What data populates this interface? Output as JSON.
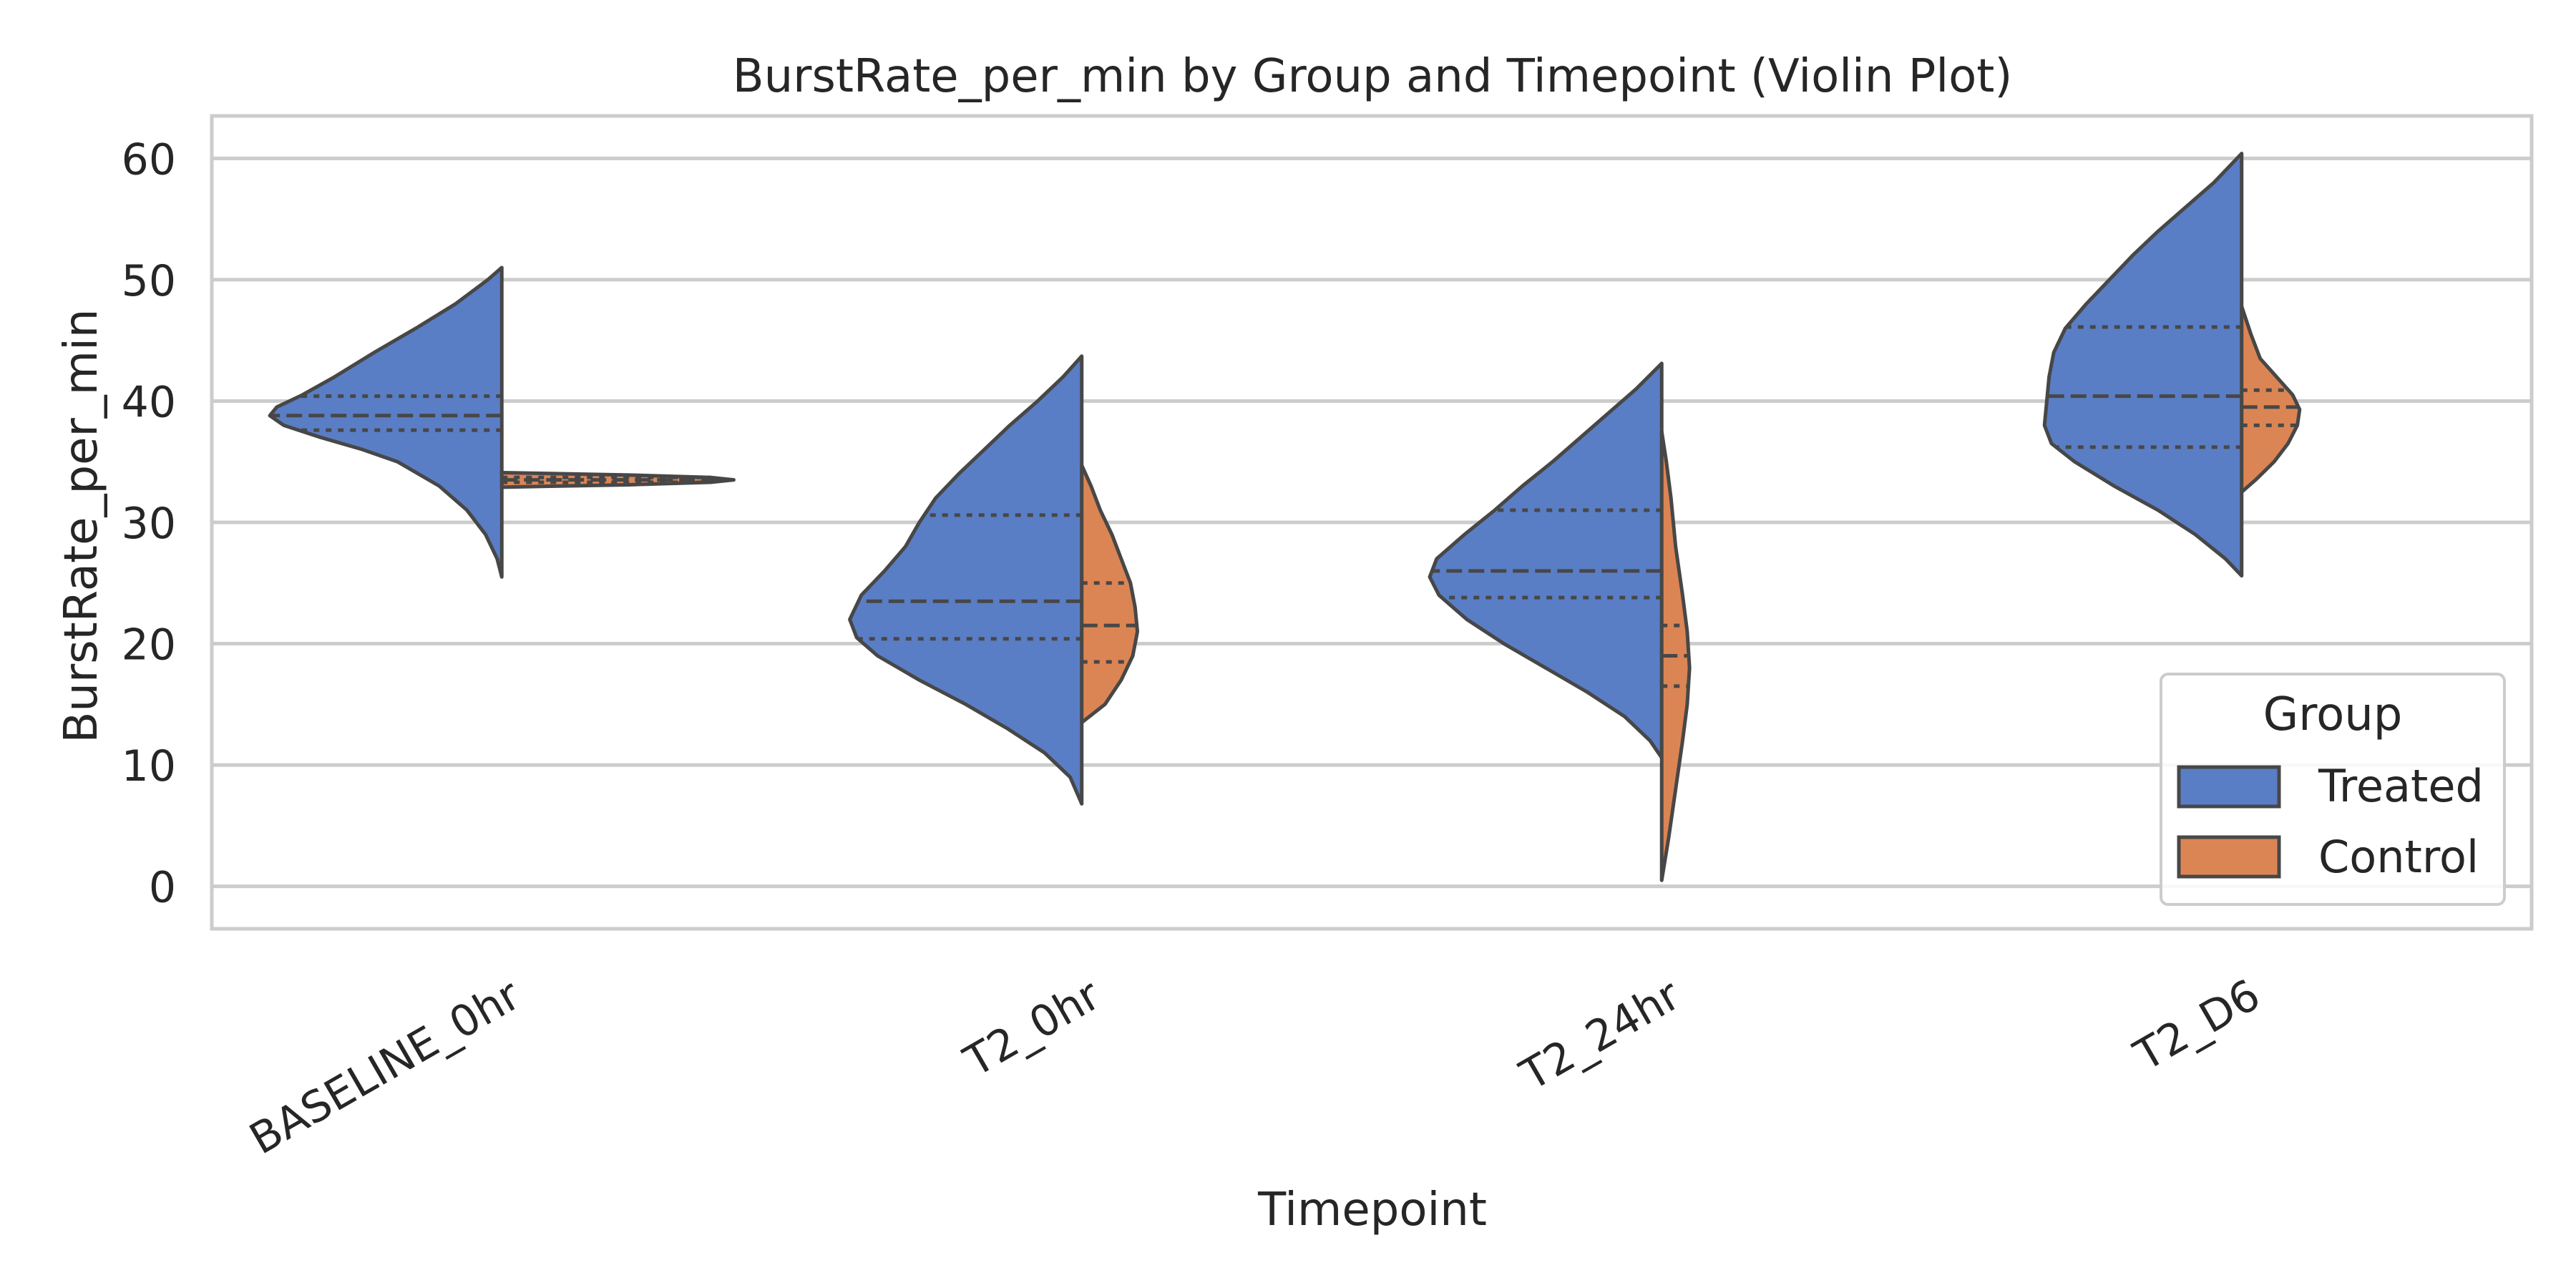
{
  "chart_data": {
    "type": "violin",
    "title": "BurstRate_per_min by Group and Timepoint (Violin Plot)",
    "xlabel": "Timepoint",
    "ylabel": "BurstRate_per_min",
    "ylim": [
      -3.5,
      63.5
    ],
    "yticks": [
      0,
      10,
      20,
      30,
      40,
      50,
      60
    ],
    "grid": true,
    "split": true,
    "inner": "quartile",
    "categories": [
      "BASELINE_0hr",
      "T2_0hr",
      "T2_24hr",
      "T2_D6"
    ],
    "legend": {
      "title": "Group",
      "placement": "lower-right",
      "entries": [
        "Treated",
        "Control"
      ]
    },
    "series": [
      {
        "name": "Treated",
        "color": "#5A7EC5",
        "side": "left",
        "violins": [
          {
            "range": [
              25.5,
              51
            ],
            "quartiles": [
              37.6,
              38.8,
              40.4
            ],
            "profile": [
              [
                25.5,
                0.0
              ],
              [
                27,
                0.02
              ],
              [
                29,
                0.07
              ],
              [
                31,
                0.15
              ],
              [
                33,
                0.27
              ],
              [
                35,
                0.45
              ],
              [
                36,
                0.6
              ],
              [
                37,
                0.78
              ],
              [
                38,
                0.94
              ],
              [
                38.8,
                1.0
              ],
              [
                39.5,
                0.97
              ],
              [
                40.5,
                0.86
              ],
              [
                42,
                0.72
              ],
              [
                44,
                0.55
              ],
              [
                46,
                0.37
              ],
              [
                48,
                0.2
              ],
              [
                50,
                0.06
              ],
              [
                51,
                0.0
              ]
            ]
          },
          {
            "range": [
              6.8,
              43.7
            ],
            "quartiles": [
              20.4,
              23.5,
              30.6
            ],
            "profile": [
              [
                6.8,
                0.0
              ],
              [
                9,
                0.05
              ],
              [
                11,
                0.16
              ],
              [
                13,
                0.32
              ],
              [
                15,
                0.5
              ],
              [
                17,
                0.7
              ],
              [
                19,
                0.88
              ],
              [
                20.5,
                0.97
              ],
              [
                22,
                1.0
              ],
              [
                24,
                0.95
              ],
              [
                26,
                0.85
              ],
              [
                28,
                0.76
              ],
              [
                30,
                0.7
              ],
              [
                32,
                0.63
              ],
              [
                34,
                0.53
              ],
              [
                36,
                0.42
              ],
              [
                38,
                0.31
              ],
              [
                40,
                0.19
              ],
              [
                42,
                0.08
              ],
              [
                43.7,
                0.0
              ]
            ]
          },
          {
            "range": [
              10.6,
              43.1
            ],
            "quartiles": [
              23.8,
              26.0,
              31.0
            ],
            "profile": [
              [
                10.6,
                0.0
              ],
              [
                12,
                0.05
              ],
              [
                14,
                0.16
              ],
              [
                16,
                0.32
              ],
              [
                18,
                0.5
              ],
              [
                20,
                0.68
              ],
              [
                22,
                0.84
              ],
              [
                24,
                0.96
              ],
              [
                25.5,
                1.0
              ],
              [
                27,
                0.97
              ],
              [
                29,
                0.85
              ],
              [
                31,
                0.72
              ],
              [
                33,
                0.6
              ],
              [
                35,
                0.47
              ],
              [
                37,
                0.35
              ],
              [
                39,
                0.23
              ],
              [
                41,
                0.11
              ],
              [
                43.1,
                0.0
              ]
            ]
          },
          {
            "range": [
              25.6,
              60.4
            ],
            "quartiles": [
              36.2,
              40.4,
              46.1
            ],
            "profile": [
              [
                25.6,
                0.0
              ],
              [
                27,
                0.07
              ],
              [
                29,
                0.2
              ],
              [
                31,
                0.36
              ],
              [
                33,
                0.55
              ],
              [
                35,
                0.72
              ],
              [
                36.5,
                0.82
              ],
              [
                38,
                0.85
              ],
              [
                40,
                0.84
              ],
              [
                42,
                0.83
              ],
              [
                44,
                0.81
              ],
              [
                46,
                0.76
              ],
              [
                48,
                0.67
              ],
              [
                50,
                0.57
              ],
              [
                52,
                0.47
              ],
              [
                54,
                0.36
              ],
              [
                56,
                0.24
              ],
              [
                58,
                0.12
              ],
              [
                60.4,
                0.0
              ]
            ]
          }
        ]
      },
      {
        "name": "Control",
        "color": "#DC8554",
        "side": "right",
        "violins": [
          {
            "range": [
              32.9,
              34.1
            ],
            "quartiles": [
              33.3,
              33.5,
              33.7
            ],
            "profile": [
              [
                32.9,
                0.0
              ],
              [
                33.1,
                0.55
              ],
              [
                33.3,
                0.9
              ],
              [
                33.5,
                1.0
              ],
              [
                33.7,
                0.9
              ],
              [
                33.9,
                0.55
              ],
              [
                34.1,
                0.0
              ]
            ]
          },
          {
            "range": [
              13.5,
              34.7
            ],
            "quartiles": [
              18.5,
              21.5,
              25.0
            ],
            "profile": [
              [
                13.5,
                0.0
              ],
              [
                15,
                0.1
              ],
              [
                17,
                0.17
              ],
              [
                19,
                0.22
              ],
              [
                21,
                0.24
              ],
              [
                23,
                0.23
              ],
              [
                25,
                0.21
              ],
              [
                27,
                0.17
              ],
              [
                29,
                0.13
              ],
              [
                31,
                0.08
              ],
              [
                33,
                0.04
              ],
              [
                34.7,
                0.0
              ]
            ]
          },
          {
            "range": [
              0.5,
              37.5
            ],
            "quartiles": [
              16.5,
              19.0,
              21.5
            ],
            "profile": [
              [
                0.5,
                0.0
              ],
              [
                4,
                0.03
              ],
              [
                8,
                0.06
              ],
              [
                12,
                0.09
              ],
              [
                15,
                0.11
              ],
              [
                18,
                0.12
              ],
              [
                21,
                0.11
              ],
              [
                24,
                0.09
              ],
              [
                28,
                0.06
              ],
              [
                32,
                0.04
              ],
              [
                35,
                0.02
              ],
              [
                37.5,
                0.0
              ]
            ]
          },
          {
            "range": [
              32.5,
              47.8
            ],
            "quartiles": [
              38.0,
              39.5,
              40.9
            ],
            "profile": [
              [
                32.5,
                0.0
              ],
              [
                33.5,
                0.06
              ],
              [
                35,
                0.14
              ],
              [
                36.5,
                0.2
              ],
              [
                38,
                0.24
              ],
              [
                39.3,
                0.25
              ],
              [
                40.5,
                0.22
              ],
              [
                42,
                0.15
              ],
              [
                43.5,
                0.08
              ],
              [
                45.5,
                0.04
              ],
              [
                47.8,
                0.0
              ]
            ]
          }
        ]
      }
    ]
  }
}
